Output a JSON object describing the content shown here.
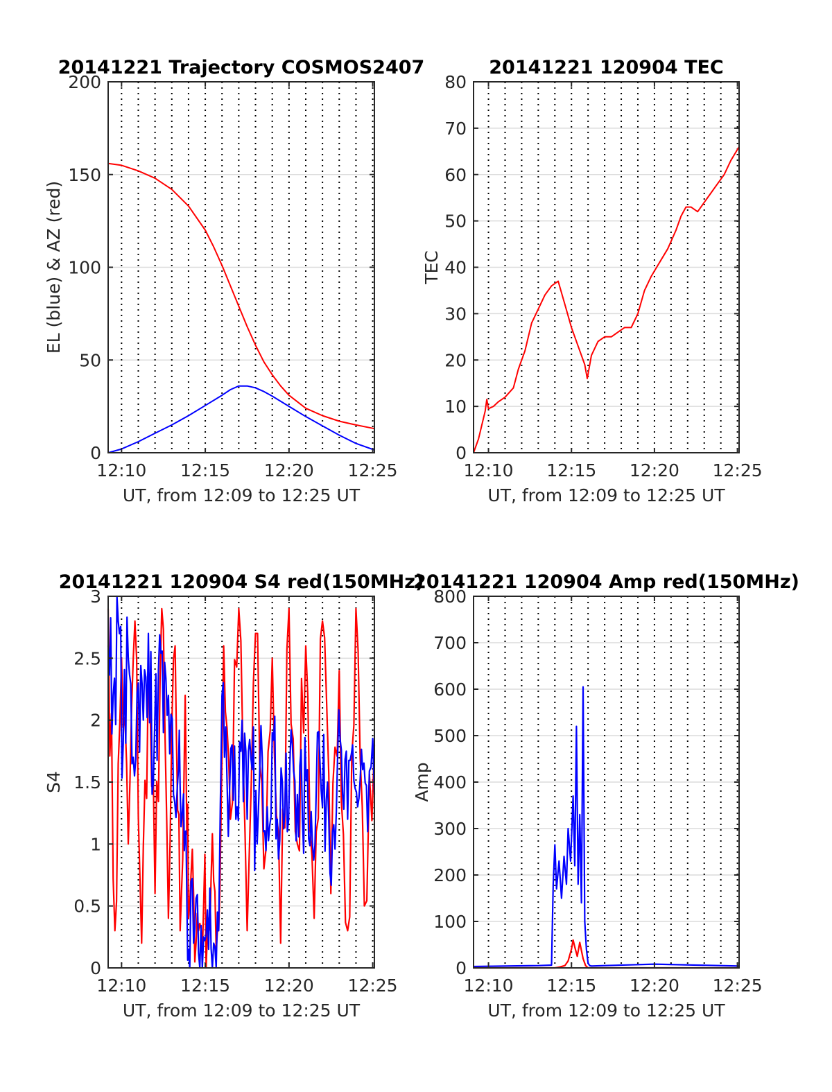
{
  "figure": {
    "colors": {
      "red": "#ff0000",
      "blue": "#0000ff",
      "grid": "#dcdcdc",
      "axis": "#262626"
    }
  },
  "chart_data": [
    {
      "type": "line",
      "title": "20141221 Trajectory COSMOS2407",
      "xlabel": "UT, from 12:09 to 12:25 UT",
      "ylabel": "EL (blue) & AZ (red)",
      "xlim": [
        9.2,
        25.1
      ],
      "ylim": [
        0,
        200
      ],
      "xticks": [
        {
          "v": 10,
          "label": "12:10"
        },
        {
          "v": 15,
          "label": "12:15"
        },
        {
          "v": 20,
          "label": "12:20"
        },
        {
          "v": 25,
          "label": "12:25"
        }
      ],
      "yticks": [
        {
          "v": 0,
          "label": "0"
        },
        {
          "v": 50,
          "label": "50"
        },
        {
          "v": 100,
          "label": "100"
        },
        {
          "v": 150,
          "label": "150"
        },
        {
          "v": 200,
          "label": "200"
        }
      ],
      "grid": true,
      "series": [
        {
          "color": "#ff0000",
          "x": [
            9.2,
            10,
            11,
            12,
            13,
            14,
            15,
            15.5,
            16,
            16.5,
            17,
            17.5,
            18,
            18.5,
            19,
            19.5,
            20,
            21,
            22,
            23,
            24,
            25.1
          ],
          "values": [
            156,
            155,
            152,
            148,
            142,
            133,
            120,
            111,
            101,
            90,
            79,
            68,
            58,
            49,
            42,
            36,
            31,
            24,
            20,
            17,
            15,
            13
          ]
        },
        {
          "color": "#0000ff",
          "x": [
            9.2,
            10,
            11,
            12,
            13,
            14,
            15,
            16,
            16.5,
            17,
            17.5,
            18,
            18.5,
            19,
            20,
            21,
            22,
            23,
            24,
            25.1
          ],
          "values": [
            0,
            2,
            6,
            10.5,
            15,
            20,
            25.5,
            31,
            34,
            36,
            36,
            35,
            33,
            30.5,
            25,
            19.5,
            14.5,
            9.5,
            5,
            1.5
          ]
        }
      ]
    },
    {
      "type": "line",
      "title": "20141221 120904 TEC",
      "xlabel": "UT, from 12:09 to 12:25 UT",
      "ylabel": "TEC",
      "xlim": [
        9.1,
        25.1
      ],
      "ylim": [
        0,
        80
      ],
      "xticks": [
        {
          "v": 10,
          "label": "12:10"
        },
        {
          "v": 15,
          "label": "12:15"
        },
        {
          "v": 20,
          "label": "12:20"
        },
        {
          "v": 25,
          "label": "12:25"
        }
      ],
      "yticks": [
        {
          "v": 0,
          "label": "0"
        },
        {
          "v": 10,
          "label": "10"
        },
        {
          "v": 20,
          "label": "20"
        },
        {
          "v": 30,
          "label": "30"
        },
        {
          "v": 40,
          "label": "40"
        },
        {
          "v": 50,
          "label": "50"
        },
        {
          "v": 60,
          "label": "60"
        },
        {
          "v": 70,
          "label": "70"
        },
        {
          "v": 80,
          "label": "80"
        }
      ],
      "grid": true,
      "series": [
        {
          "color": "#ff0000",
          "x": [
            9.1,
            9.4,
            9.6,
            9.8,
            9.9,
            10.0,
            10.3,
            10.6,
            11.0,
            11.5,
            11.8,
            12.2,
            12.6,
            13.0,
            13.4,
            13.8,
            14.2,
            14.6,
            15.0,
            15.4,
            15.8,
            15.95,
            16.2,
            16.6,
            17.0,
            17.4,
            17.8,
            18.2,
            18.6,
            19.0,
            19.4,
            19.8,
            20.3,
            20.8,
            21.3,
            21.6,
            21.9,
            22.2,
            22.6,
            23.0,
            23.4,
            23.8,
            24.2,
            24.6,
            25.1
          ],
          "values": [
            0,
            3,
            6,
            9,
            11.5,
            9.5,
            10,
            11,
            12,
            14,
            18,
            22,
            28,
            31,
            34,
            36,
            37,
            32,
            27,
            23,
            19,
            16,
            21,
            24,
            25,
            25,
            26,
            27,
            27,
            30,
            35,
            38,
            41,
            44,
            48,
            51,
            53,
            53,
            52,
            54,
            56,
            58,
            60,
            63,
            66
          ]
        }
      ]
    },
    {
      "type": "line",
      "title": "20141221 120904 S4 red(150MHz)",
      "xlabel": "UT, from 12:09 to 12:25 UT",
      "ylabel": "S4",
      "xlim": [
        9.2,
        25.1
      ],
      "ylim": [
        0,
        3
      ],
      "xticks": [
        {
          "v": 10,
          "label": "12:10"
        },
        {
          "v": 15,
          "label": "12:15"
        },
        {
          "v": 20,
          "label": "12:20"
        },
        {
          "v": 25,
          "label": "12:25"
        }
      ],
      "yticks": [
        {
          "v": 0,
          "label": "0"
        },
        {
          "v": 0.5,
          "label": "0.5"
        },
        {
          "v": 1,
          "label": "1"
        },
        {
          "v": 1.5,
          "label": "1.5"
        },
        {
          "v": 2,
          "label": "2"
        },
        {
          "v": 2.5,
          "label": "2.5"
        },
        {
          "v": 3,
          "label": "3"
        }
      ],
      "grid": true,
      "series": [
        {
          "color": "#ff0000",
          "x": [
            9.2,
            9.6,
            10.0,
            10.4,
            10.8,
            11.2,
            11.6,
            12.0,
            12.4,
            12.8,
            13.2,
            13.5,
            13.8,
            14.0,
            14.3,
            14.6,
            14.9,
            15.2,
            15.5,
            15.8,
            16.1,
            16.5,
            17.0,
            17.5,
            18.0,
            18.5,
            19.0,
            19.5,
            20.0,
            20.5,
            21.0,
            21.5,
            22.0,
            22.5,
            23.0,
            23.5,
            24.0,
            24.5,
            25.1
          ],
          "values": [
            2.9,
            0.3,
            2.5,
            1.0,
            2.8,
            0.2,
            2.4,
            0.6,
            2.9,
            0.4,
            2.6,
            0.3,
            2.2,
            0.4,
            0.6,
            0.3,
            0.5,
            0.4,
            0.7,
            0.3,
            2.6,
            1.2,
            2.9,
            0.3,
            2.7,
            0.8,
            2.5,
            0.2,
            2.9,
            1.0,
            2.6,
            0.4,
            2.8,
            0.6,
            2.4,
            0.3,
            2.9,
            0.5,
            1.8
          ]
        },
        {
          "color": "#0000ff",
          "x": [
            9.2,
            9.5,
            9.8,
            10.1,
            10.4,
            10.7,
            11.0,
            11.3,
            11.6,
            11.9,
            12.2,
            12.5,
            12.8,
            13.1,
            13.4,
            13.6,
            13.8,
            14.0,
            14.3,
            14.6,
            14.9,
            15.2,
            15.5,
            15.8,
            16.0,
            16.3,
            16.6,
            16.9,
            17.2,
            17.5,
            17.8,
            18.1,
            18.4,
            18.7,
            19.0,
            19.3,
            19.6,
            19.9,
            20.2,
            20.5,
            20.8,
            21.1,
            21.4,
            21.7,
            22.0,
            22.3,
            22.6,
            22.9,
            23.2,
            23.5,
            23.8,
            24.1,
            24.4,
            24.7,
            25.1
          ],
          "values": [
            2.6,
            2.2,
            2.8,
            1.8,
            2.5,
            1.7,
            2.3,
            2.0,
            2.7,
            1.5,
            2.4,
            1.9,
            2.2,
            1.4,
            1.6,
            1.2,
            1.1,
            0.15,
            0.2,
            0.12,
            0.25,
            0.15,
            0.2,
            0.3,
            2.2,
            1.5,
            1.8,
            1.3,
            2.0,
            1.2,
            1.6,
            1.0,
            1.7,
            1.3,
            1.9,
            1.2,
            1.5,
            1.1,
            1.8,
            1.4,
            1.2,
            1.6,
            1.0,
            1.9,
            1.3,
            1.5,
            1.1,
            1.7,
            1.4,
            1.2,
            1.8,
            1.3,
            1.6,
            1.1,
            1.4
          ]
        }
      ]
    },
    {
      "type": "line",
      "title": "20141221 120904 Amp red(150MHz)",
      "xlabel": "UT, from 12:09 to 12:25 UT",
      "ylabel": "Amp",
      "xlim": [
        9.1,
        25.1
      ],
      "ylim": [
        0,
        800
      ],
      "xticks": [
        {
          "v": 10,
          "label": "12:10"
        },
        {
          "v": 15,
          "label": "12:15"
        },
        {
          "v": 20,
          "label": "12:20"
        },
        {
          "v": 25,
          "label": "12:25"
        }
      ],
      "yticks": [
        {
          "v": 0,
          "label": "0"
        },
        {
          "v": 100,
          "label": "100"
        },
        {
          "v": 200,
          "label": "200"
        },
        {
          "v": 300,
          "label": "300"
        },
        {
          "v": 400,
          "label": "400"
        },
        {
          "v": 500,
          "label": "500"
        },
        {
          "v": 600,
          "label": "600"
        },
        {
          "v": 700,
          "label": "700"
        },
        {
          "v": 800,
          "label": "800"
        }
      ],
      "grid": true,
      "series": [
        {
          "color": "#0000ff",
          "x": [
            9.1,
            11.0,
            13.0,
            13.8,
            13.9,
            14.0,
            14.1,
            14.25,
            14.4,
            14.55,
            14.7,
            14.8,
            14.95,
            15.1,
            15.2,
            15.3,
            15.4,
            15.5,
            15.6,
            15.7,
            15.8,
            15.9,
            16.0,
            16.1,
            16.2,
            17.0,
            20.0,
            25.1
          ],
          "values": [
            3,
            4,
            5,
            6,
            180,
            265,
            170,
            230,
            150,
            240,
            180,
            300,
            230,
            370,
            220,
            520,
            180,
            330,
            140,
            605,
            100,
            40,
            10,
            5,
            4,
            5,
            8,
            4
          ]
        },
        {
          "color": "#ff0000",
          "x": [
            9.1,
            13.5,
            14.0,
            14.3,
            14.6,
            14.8,
            15.0,
            15.1,
            15.2,
            15.35,
            15.5,
            15.7,
            15.85,
            16.0,
            16.5,
            25.1
          ],
          "values": [
            0,
            0,
            0,
            2,
            5,
            15,
            40,
            60,
            45,
            25,
            55,
            20,
            5,
            0,
            0,
            0
          ]
        }
      ]
    }
  ]
}
